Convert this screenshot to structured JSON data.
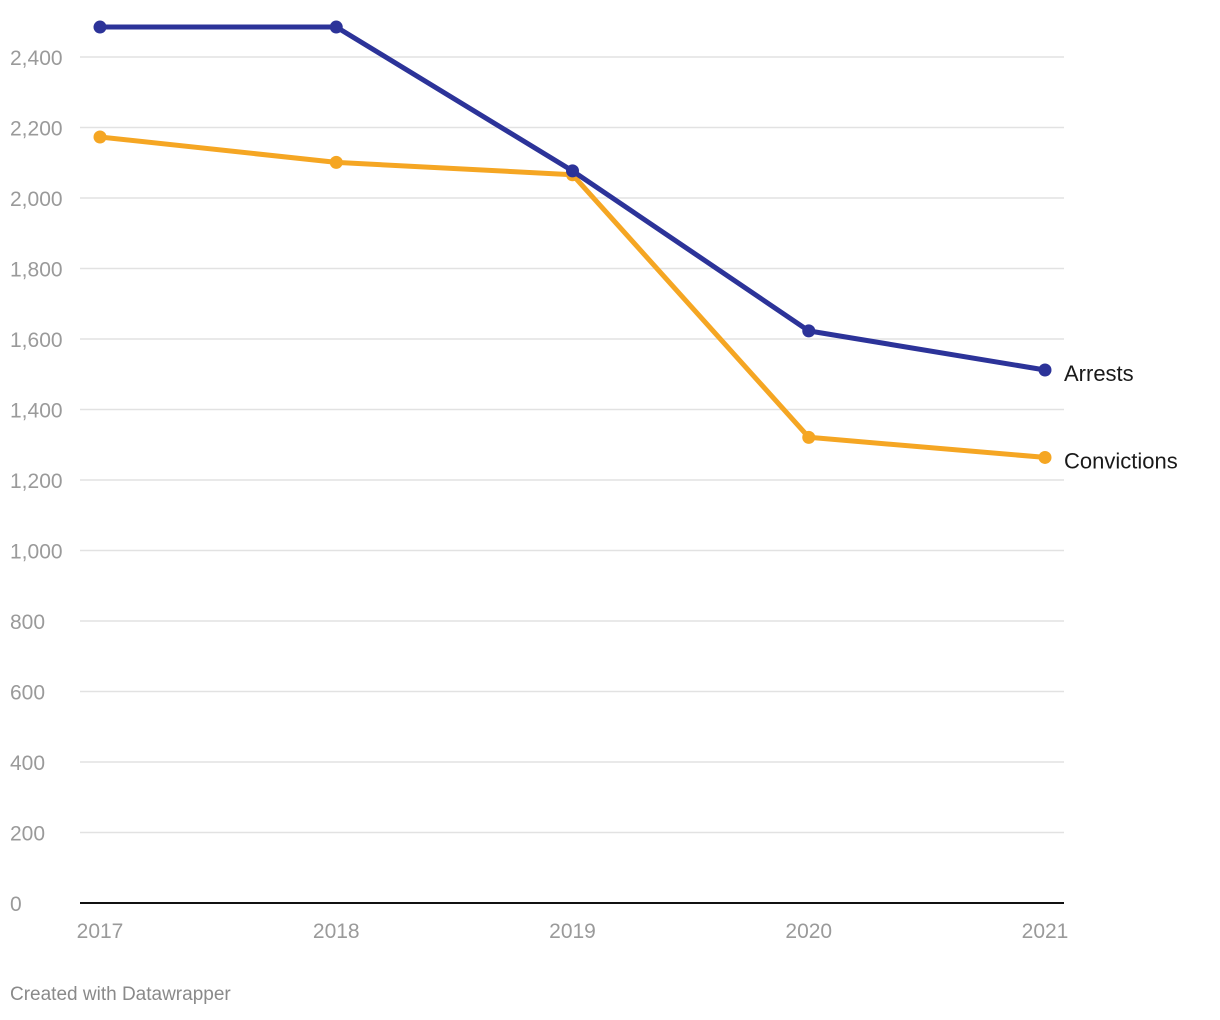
{
  "chart_data": {
    "type": "line",
    "categories": [
      "2017",
      "2018",
      "2019",
      "2020",
      "2021"
    ],
    "series": [
      {
        "name": "Arrests",
        "color": "#2c3399",
        "values": [
          2485,
          2485,
          2077,
          1623,
          1512
        ]
      },
      {
        "name": "Convictions",
        "color": "#f5a623",
        "values": [
          2173,
          2101,
          2066,
          1321,
          1264
        ]
      }
    ],
    "yticks": [
      0,
      200,
      400,
      600,
      800,
      1000,
      1200,
      1400,
      1600,
      1800,
      2000,
      2200,
      2400
    ],
    "ytick_labels": [
      "0",
      "200",
      "400",
      "600",
      "800",
      "1,000",
      "1,200",
      "1,400",
      "1,600",
      "1,800",
      "2,000",
      "2,200",
      "2,400"
    ],
    "ylim": [
      0,
      2400
    ],
    "grid": true,
    "legend": "inline-right",
    "xlabel": "",
    "ylabel": ""
  },
  "footer": {
    "credit": "Created with Datawrapper"
  }
}
